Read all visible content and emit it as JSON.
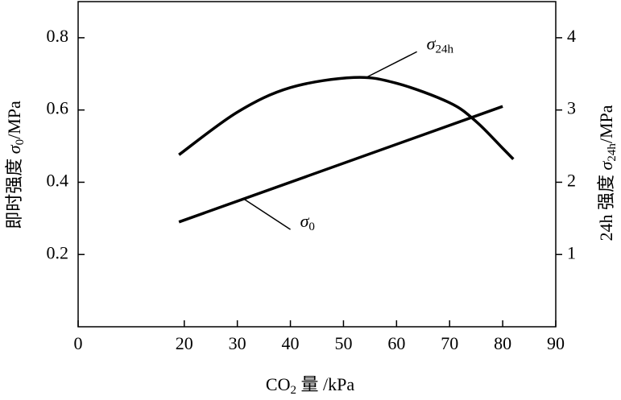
{
  "chart_data": {
    "type": "line",
    "xlabel": [
      "CO",
      "2",
      " 量 /kPa"
    ],
    "ylabel": [
      "即时强度 ",
      "σ",
      "0",
      "/MPa"
    ],
    "y2label": [
      "24h 强度 ",
      "σ",
      "24h",
      "/MPa"
    ],
    "xlim": [
      0,
      90
    ],
    "xticks": [
      0,
      20,
      30,
      40,
      50,
      60,
      70,
      80,
      90
    ],
    "ylim": [
      0,
      0.9
    ],
    "yticks": [
      0.2,
      0.4,
      0.6,
      0.8
    ],
    "y2lim": [
      0,
      4.5
    ],
    "y2ticks": [
      1,
      2,
      3,
      4
    ],
    "series": [
      {
        "color": "#000000",
        "axis": "y",
        "x": [
          19,
          80
        ],
        "values": [
          0.29,
          0.61
        ]
      },
      {
        "color": "#000000",
        "axis": "y2",
        "x": [
          19,
          30,
          40,
          52,
          60,
          70,
          75,
          80,
          82
        ],
        "values": [
          2.38,
          2.97,
          3.31,
          3.45,
          3.37,
          3.1,
          2.84,
          2.47,
          2.32
        ]
      }
    ],
    "annotations": [
      {
        "text": "σ",
        "sub": "0"
      },
      {
        "text": "σ",
        "sub": "24h"
      }
    ]
  }
}
